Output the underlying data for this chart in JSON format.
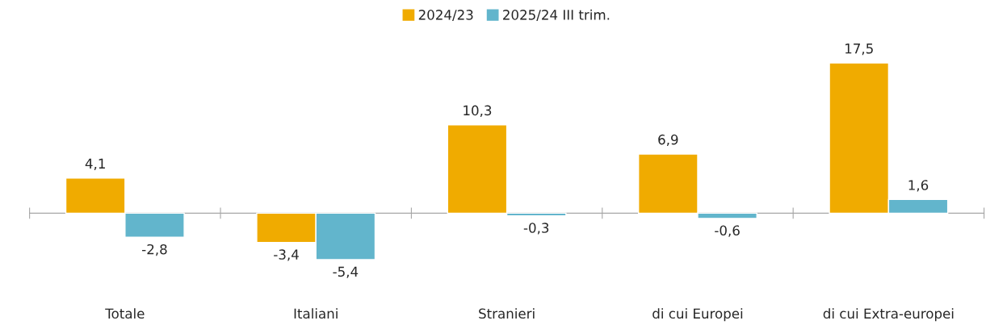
{
  "chart_data": {
    "type": "bar",
    "categories": [
      "Totale",
      "Italiani",
      "Stranieri",
      "di cui Europei",
      "di cui Extra-europei"
    ],
    "series": [
      {
        "name": "2024/23",
        "color": "#f0ab00",
        "values": [
          4.1,
          -3.4,
          10.3,
          6.9,
          17.5
        ],
        "value_labels": [
          "4,1",
          "-3,4",
          "10,3",
          "6,9",
          "17,5"
        ]
      },
      {
        "name": "2025/24 III trim.",
        "color": "#62b5cc",
        "values": [
          -2.8,
          -5.4,
          -0.3,
          -0.6,
          1.6
        ],
        "value_labels": [
          "-2,8",
          "-5,4",
          "-0,3",
          "-0,6",
          "1,6"
        ]
      }
    ],
    "legend": "top",
    "grid": false
  }
}
